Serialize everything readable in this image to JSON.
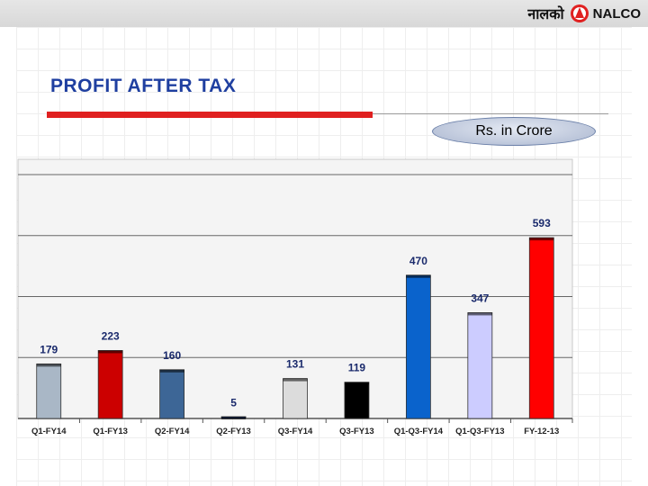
{
  "header": {
    "logo_hindi": "नालको",
    "logo_name": "NALCO",
    "logo_icon": "nalco-emblem-icon"
  },
  "title": "PROFIT AFTER TAX",
  "unit_label": "Rs. in Crore",
  "colors": {
    "title": "#1f3fa0",
    "accent_bar": "#e02020",
    "plot_bg": "#f4f4f4"
  },
  "chart_data": {
    "type": "bar",
    "title": "",
    "xlabel": "",
    "ylabel": "",
    "ylim": [
      0,
      850
    ],
    "grid": true,
    "legend": "none",
    "categories": [
      "Q1-FY14",
      "Q1-FY13",
      "Q2-FY14",
      "Q2-FY13",
      "Q3-FY14",
      "Q3-FY13",
      "Q1-Q3-FY14",
      "Q1-Q3-FY13",
      "FY-12-13"
    ],
    "values": [
      179,
      223,
      160,
      5,
      131,
      119,
      470,
      347,
      593
    ],
    "labels": [
      "179",
      "223",
      "160",
      "5",
      "131",
      "119",
      "470",
      "347",
      "593"
    ],
    "colors": [
      "#a9b7c6",
      "#cc0000",
      "#3d6696",
      "#1a3a80",
      "#dcdcdc",
      "#000000",
      "#0a63cc",
      "#ccccff",
      "#ff0000"
    ]
  }
}
